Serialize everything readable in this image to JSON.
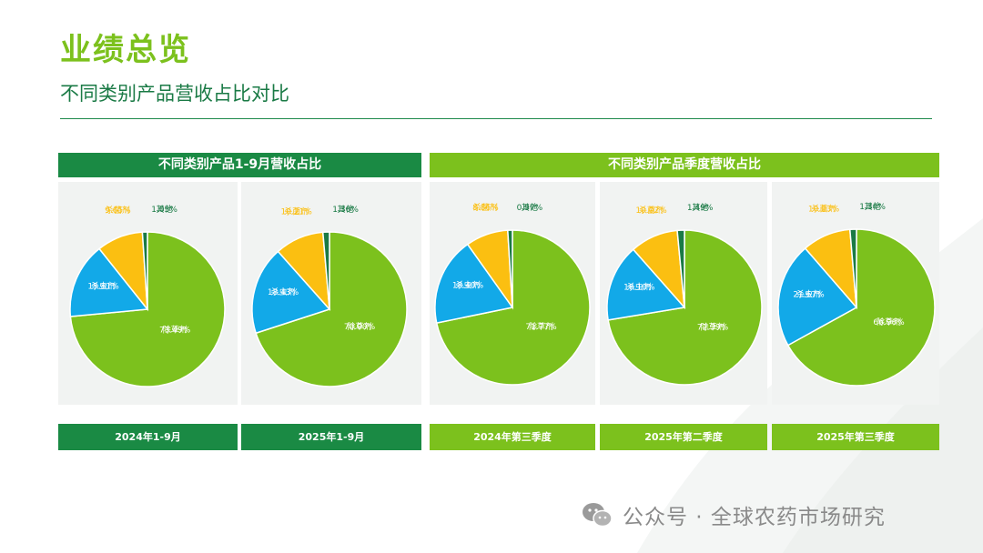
{
  "page": {
    "title": "业绩总览",
    "subtitle": "不同类别产品营收占比对比"
  },
  "groups": [
    {
      "label": "不同类别产品1-9月营收占比"
    },
    {
      "label": "不同类别产品季度营收占比"
    }
  ],
  "watermark": {
    "text": "公众号 · 全球农药市场研究",
    "icon": "wechat-icon"
  },
  "colors": {
    "除草剂": "#7cc11d",
    "杀虫剂": "#12a9e8",
    "杀菌剂": "#fbbf11",
    "其他": "#1a7a45",
    "header_dark": "#1a8a44",
    "header_light": "#7cc11d"
  },
  "chart_data": [
    {
      "type": "pie",
      "title": "2024年1-9月",
      "categories": [
        "除草剂",
        "杀虫剂",
        "杀菌剂",
        "其他"
      ],
      "values": [
        73.49,
        15.81,
        9.65,
        1.05
      ],
      "labels": [
        "73.49%",
        "15.81%",
        "9.65%",
        "1.05%"
      ]
    },
    {
      "type": "pie",
      "title": "2025年1-9月",
      "categories": [
        "除草剂",
        "杀虫剂",
        "杀菌剂",
        "其他"
      ],
      "values": [
        70.0,
        18.43,
        10.21,
        1.36
      ],
      "labels": [
        "70.00%",
        "18.43%",
        "10.21%",
        "1.36%"
      ]
    },
    {
      "type": "pie",
      "title": "2024年第三季度",
      "categories": [
        "除草剂",
        "杀虫剂",
        "杀菌剂",
        "其他"
      ],
      "values": [
        71.77,
        18.4,
        8.86,
        0.97
      ],
      "labels": [
        "71.77%",
        "18.40%",
        "8.86%",
        "0.97%"
      ]
    },
    {
      "type": "pie",
      "title": "2025年第二季度",
      "categories": [
        "除草剂",
        "杀虫剂",
        "杀菌剂",
        "其他"
      ],
      "values": [
        72.39,
        16.1,
        10.02,
        1.49
      ],
      "labels": [
        "72.39%",
        "16.10%",
        "10.02%",
        "1.49%"
      ]
    },
    {
      "type": "pie",
      "title": "2025年第三季度",
      "categories": [
        "除草剂",
        "杀虫剂",
        "杀菌剂",
        "其他"
      ],
      "values": [
        66.96,
        21.67,
        10.03,
        1.34
      ],
      "labels": [
        "66.96%",
        "21.67%",
        "10.03%",
        "1.34%"
      ]
    }
  ]
}
